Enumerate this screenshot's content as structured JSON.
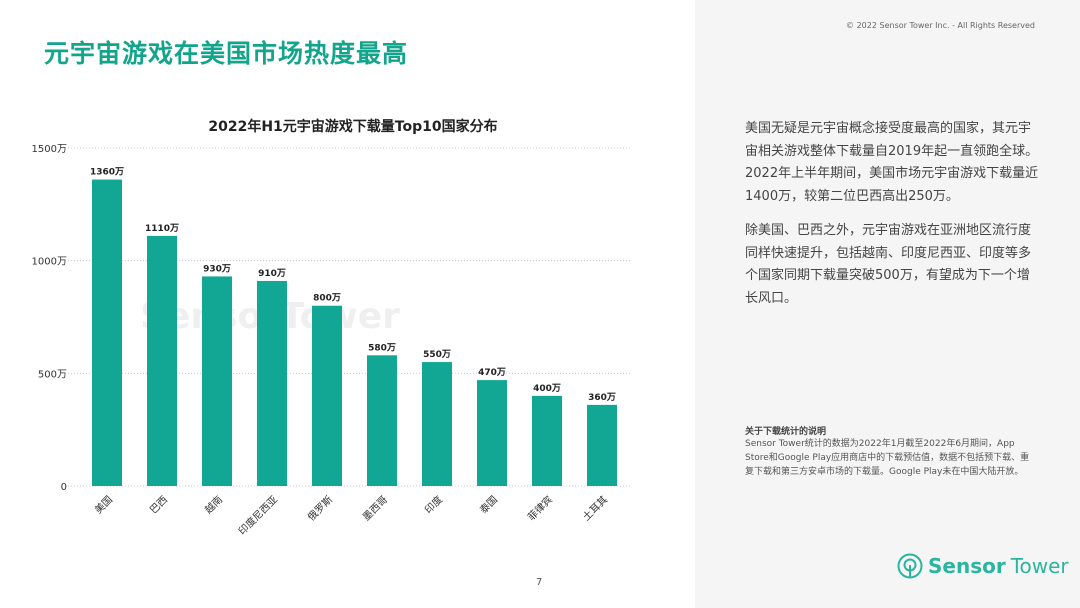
{
  "page_title": "元宇宙游戏在美国市场热度最高",
  "copyright": "© 2022 Sensor Tower Inc. - All Rights Reserved",
  "paragraphs": [
    "美国无疑是元宇宙概念接受度最高的国家，其元宇宙相关游戏整体下载量自2019年起一直领跑全球。2022年上半年期间，美国市场元宇宙游戏下载量近1400万，较第二位巴西高出250万。",
    "除美国、巴西之外，元宇宙游戏在亚洲地区流行度同样快速提升，包括越南、印度尼西亚、印度等多个国家同期下载量突破500万，有望成为下一个增长风口。"
  ],
  "note_title": "关于下载统计的说明",
  "note": "Sensor Tower统计的数据为2022年1月截至2022年6月期间，App Store和Google Play应用商店中的下载预估值，数据不包括预下载、重复下载和第三方安卓市场的下载量。Google Play未在中国大陆开放。",
  "logo": {
    "a": "Sensor",
    "b": "Tower"
  },
  "watermark": "SensorTower",
  "page_number": "7",
  "colors": {
    "accent": "#13a58c",
    "bar": "#12a795"
  },
  "chart_data": {
    "type": "bar",
    "title": "2022年H1元宇宙游戏下载量Top10国家分布",
    "categories": [
      "美国",
      "巴西",
      "越南",
      "印度尼西亚",
      "俄罗斯",
      "墨西哥",
      "印度",
      "泰国",
      "菲律宾",
      "土耳其"
    ],
    "values": [
      1360,
      1110,
      930,
      910,
      800,
      580,
      550,
      470,
      400,
      360
    ],
    "data_labels": [
      "1360万",
      "1110万",
      "930万",
      "910万",
      "800万",
      "580万",
      "550万",
      "470万",
      "400万",
      "360万"
    ],
    "ylim": [
      0,
      1500
    ],
    "yticks": [
      0,
      500,
      1000,
      1500
    ],
    "ytick_labels": [
      "0",
      "500万",
      "1000万",
      "1500万"
    ],
    "grid": true
  }
}
